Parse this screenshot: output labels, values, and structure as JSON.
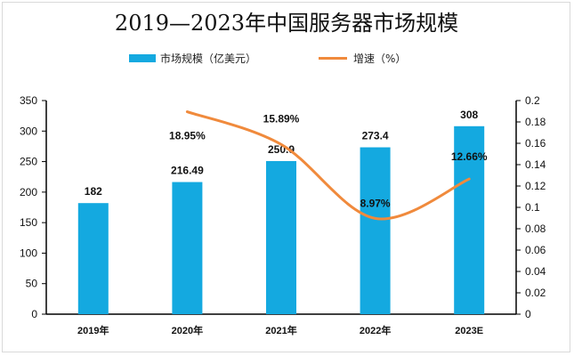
{
  "chart_data": {
    "type": "bar",
    "title": "2019—2023年中国服务器市场规模",
    "categories": [
      "2019年",
      "2020年",
      "2021年",
      "2022年",
      "2023E"
    ],
    "series": [
      {
        "name": "市场规模（亿美元）",
        "type": "bar",
        "axis": "left",
        "color": "#14a9e0",
        "values": [
          182,
          216.49,
          250.9,
          273.4,
          308
        ],
        "labels": [
          "182",
          "216.49",
          "250.9",
          "273.4",
          "308"
        ]
      },
      {
        "name": "增速（%）",
        "type": "line",
        "axis": "right",
        "color": "#f08a3c",
        "smooth": true,
        "values": [
          null,
          0.1895,
          0.1589,
          0.0897,
          0.1266
        ],
        "labels": [
          "",
          "18.95%",
          "15.89%",
          "8.97%",
          "12.66%"
        ]
      }
    ],
    "y_left": {
      "min": 0,
      "max": 350,
      "step": 50,
      "ticks": [
        "0",
        "50",
        "100",
        "150",
        "200",
        "250",
        "300",
        "350"
      ]
    },
    "y_right": {
      "min": 0,
      "max": 0.2,
      "step": 0.02,
      "ticks": [
        "0",
        "0.02",
        "0.04",
        "0.06",
        "0.08",
        "0.1",
        "0.12",
        "0.14",
        "0.16",
        "0.18",
        "0.2"
      ]
    },
    "grid": false,
    "legend_position": "top"
  }
}
